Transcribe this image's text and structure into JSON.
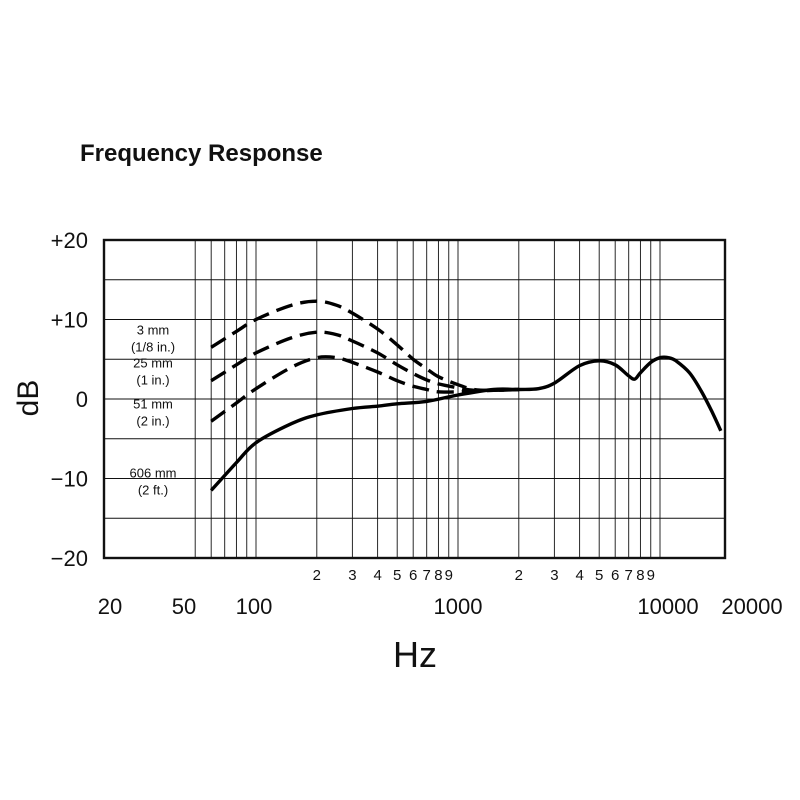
{
  "chart_data": {
    "type": "line",
    "title": "Frequency Response",
    "xlabel": "Hz",
    "ylabel": "dB",
    "x_scale": "log",
    "xlim": [
      50,
      20000
    ],
    "ylim": [
      -20,
      20
    ],
    "grid": true,
    "y_ticks": [
      {
        "value": 20,
        "label": "+20"
      },
      {
        "value": 10,
        "label": "+10"
      },
      {
        "value": 0,
        "label": "0"
      },
      {
        "value": -10,
        "label": "−10"
      },
      {
        "value": -20,
        "label": "−20"
      }
    ],
    "x_minor_tick_labels": [
      {
        "value": 200,
        "label": "2"
      },
      {
        "value": 300,
        "label": "3"
      },
      {
        "value": 400,
        "label": "4"
      },
      {
        "value": 500,
        "label": "5"
      },
      {
        "value": 600,
        "label": "6"
      },
      {
        "value": 700,
        "label": "7"
      },
      {
        "value": 800,
        "label": "8"
      },
      {
        "value": 900,
        "label": "9"
      },
      {
        "value": 2000,
        "label": "2"
      },
      {
        "value": 3000,
        "label": "3"
      },
      {
        "value": 4000,
        "label": "4"
      },
      {
        "value": 5000,
        "label": "5"
      },
      {
        "value": 6000,
        "label": "6"
      },
      {
        "value": 7000,
        "label": "7"
      },
      {
        "value": 8000,
        "label": "8"
      },
      {
        "value": 9000,
        "label": "9"
      }
    ],
    "x_major_tick_labels": [
      {
        "value": 20,
        "label": "20"
      },
      {
        "value": 50,
        "label": "50"
      },
      {
        "value": 100,
        "label": "100"
      },
      {
        "value": 1000,
        "label": "1000"
      },
      {
        "value": 10000,
        "label": "10000"
      },
      {
        "value": 20000,
        "label": "20000"
      }
    ],
    "series": [
      {
        "line_style": "dashed",
        "label_lines": [
          "3 mm",
          "(1/8 in.)"
        ],
        "points": [
          [
            60,
            6.5
          ],
          [
            80,
            8.5
          ],
          [
            100,
            10.0
          ],
          [
            150,
            11.8
          ],
          [
            200,
            12.3
          ],
          [
            250,
            11.8
          ],
          [
            300,
            10.8
          ],
          [
            400,
            8.8
          ],
          [
            500,
            6.8
          ],
          [
            600,
            5.0
          ],
          [
            700,
            3.8
          ],
          [
            800,
            2.8
          ],
          [
            1000,
            1.8
          ],
          [
            1200,
            1.2
          ],
          [
            1500,
            1.1
          ],
          [
            2000,
            1.2
          ]
        ]
      },
      {
        "line_style": "dashed",
        "label_lines": [
          "25 mm",
          "(1 in.)"
        ],
        "points": [
          [
            60,
            2.3
          ],
          [
            80,
            4.3
          ],
          [
            100,
            5.8
          ],
          [
            150,
            7.7
          ],
          [
            200,
            8.4
          ],
          [
            250,
            8.1
          ],
          [
            300,
            7.3
          ],
          [
            400,
            5.8
          ],
          [
            500,
            4.3
          ],
          [
            600,
            3.2
          ],
          [
            700,
            2.4
          ],
          [
            800,
            1.9
          ],
          [
            1000,
            1.4
          ],
          [
            1200,
            1.1
          ],
          [
            1500,
            1.1
          ],
          [
            2000,
            1.2
          ]
        ]
      },
      {
        "line_style": "dashed",
        "label_lines": [
          "51 mm",
          "(2 in.)"
        ],
        "points": [
          [
            60,
            -2.8
          ],
          [
            80,
            -0.5
          ],
          [
            100,
            1.3
          ],
          [
            150,
            4.0
          ],
          [
            200,
            5.2
          ],
          [
            250,
            5.2
          ],
          [
            300,
            4.6
          ],
          [
            400,
            3.4
          ],
          [
            500,
            2.3
          ],
          [
            600,
            1.6
          ],
          [
            700,
            1.2
          ],
          [
            800,
            0.9
          ],
          [
            1000,
            0.9
          ],
          [
            1200,
            1.0
          ],
          [
            1500,
            1.1
          ],
          [
            2000,
            1.2
          ]
        ]
      },
      {
        "line_style": "solid",
        "label_lines": [
          "606 mm",
          "(2 ft.)"
        ],
        "points": [
          [
            60,
            -11.5
          ],
          [
            80,
            -8.0
          ],
          [
            100,
            -5.5
          ],
          [
            150,
            -3.1
          ],
          [
            200,
            -2.0
          ],
          [
            300,
            -1.2
          ],
          [
            400,
            -0.9
          ],
          [
            500,
            -0.6
          ],
          [
            700,
            -0.3
          ],
          [
            1000,
            0.5
          ],
          [
            1500,
            1.2
          ],
          [
            2000,
            1.2
          ],
          [
            2500,
            1.3
          ],
          [
            3000,
            2.0
          ],
          [
            4000,
            4.2
          ],
          [
            5000,
            4.8
          ],
          [
            6000,
            4.3
          ],
          [
            7000,
            2.9
          ],
          [
            7500,
            2.5
          ],
          [
            8000,
            3.3
          ],
          [
            9000,
            4.6
          ],
          [
            10000,
            5.2
          ],
          [
            11000,
            5.2
          ],
          [
            12000,
            4.8
          ],
          [
            14000,
            3.3
          ],
          [
            16000,
            1.0
          ],
          [
            18000,
            -1.5
          ],
          [
            20000,
            -4.0
          ]
        ]
      }
    ]
  }
}
